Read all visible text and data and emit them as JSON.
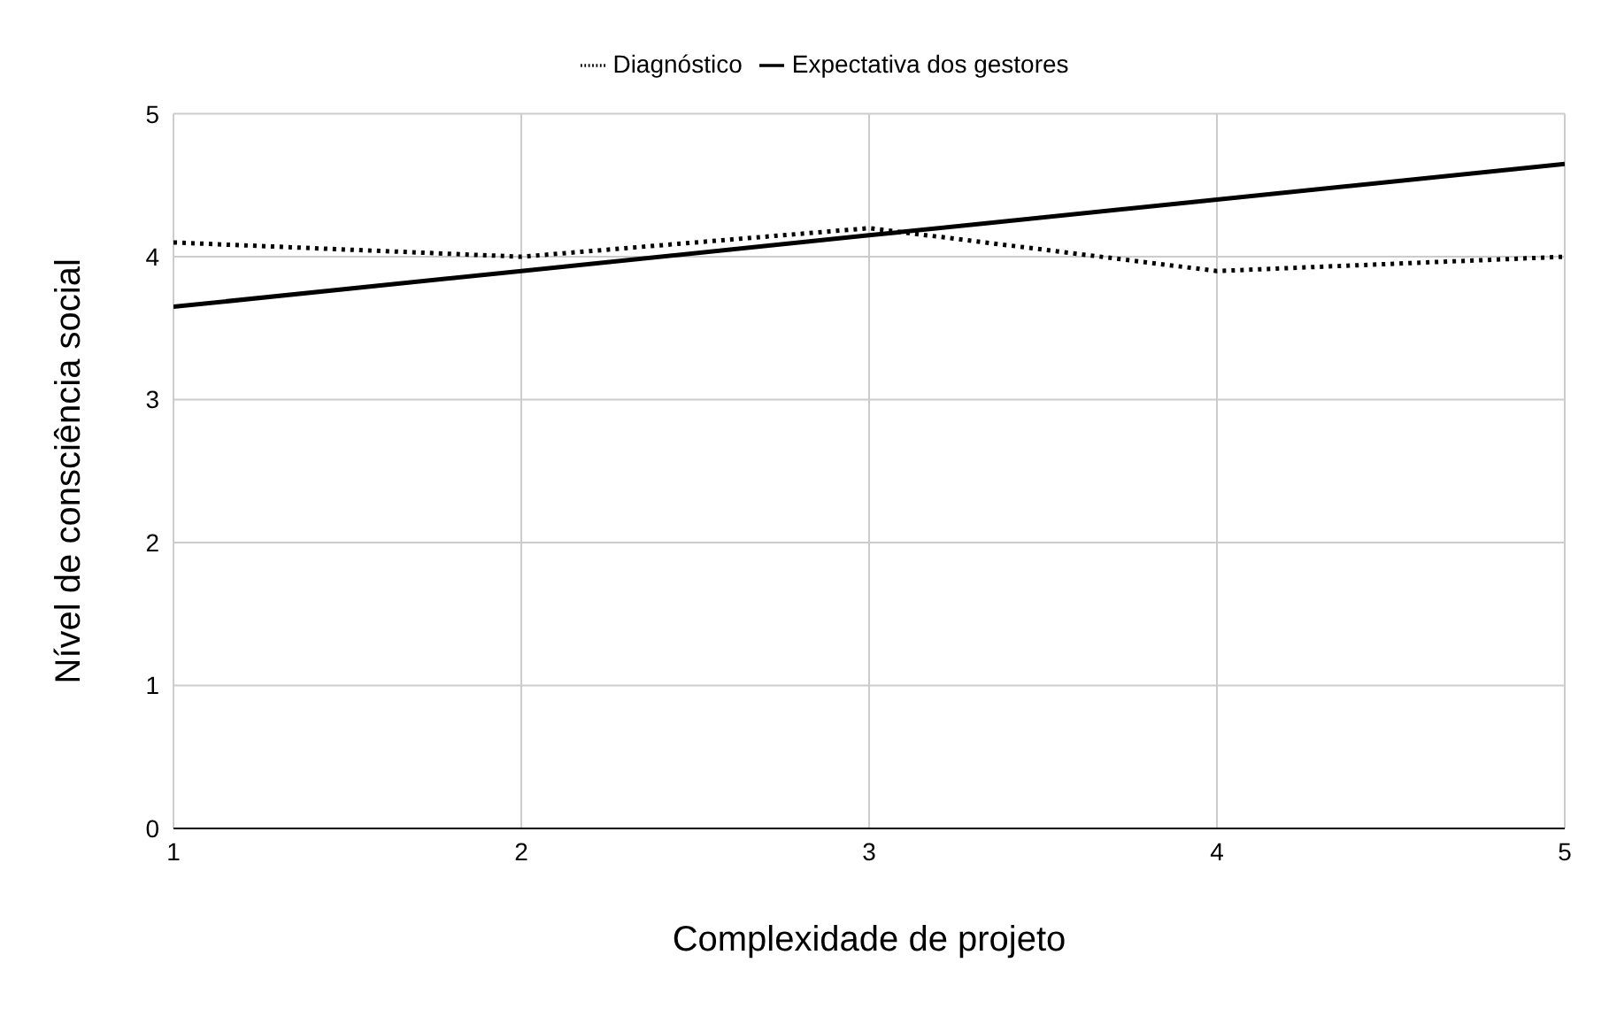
{
  "chart_data": {
    "type": "line",
    "xlabel": "Complexidade de projeto",
    "ylabel": "Nível de consciência social",
    "x": [
      1,
      2,
      3,
      4,
      5
    ],
    "xlim": [
      1,
      5
    ],
    "xticks": [
      1,
      2,
      3,
      4,
      5
    ],
    "ylim": [
      0,
      5
    ],
    "yticks": [
      0,
      1,
      2,
      3,
      4,
      5
    ],
    "grid": true,
    "legend": "top",
    "marker": "none",
    "series": [
      {
        "name": "Diagnóstico",
        "color": "#000000",
        "line_style": "dotted",
        "values": [
          4.1,
          4.0,
          4.2,
          3.9,
          4.0
        ]
      },
      {
        "name": "Expectativa dos gestores",
        "color": "#000000",
        "line_style": "solid",
        "values": [
          3.65,
          3.9,
          4.15,
          4.4,
          4.65
        ]
      }
    ]
  }
}
